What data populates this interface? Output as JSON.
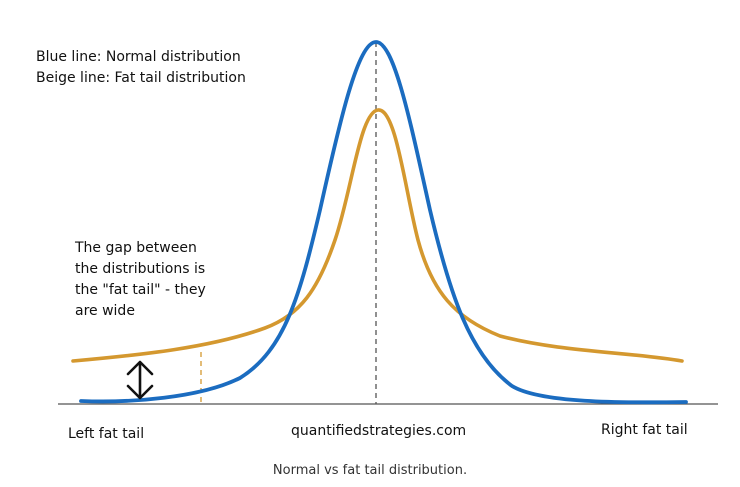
{
  "legend": {
    "blue_line": "Blue line: Normal distribution",
    "beige_line": "Beige line: Fat tail distribution"
  },
  "annotation": {
    "lines": [
      "The gap between",
      "the distributions is",
      "the \"fat tail\" - they",
      "are wide"
    ]
  },
  "labels": {
    "left": "Left fat tail",
    "center": "quantifiedstrategies.com",
    "right": "Right fat tail"
  },
  "caption": "Normal vs fat tail distribution.",
  "colors": {
    "normal": "#1b6cc0",
    "fat_tail": "#d4982f",
    "axis": "#555555",
    "arrow": "#111111"
  }
}
